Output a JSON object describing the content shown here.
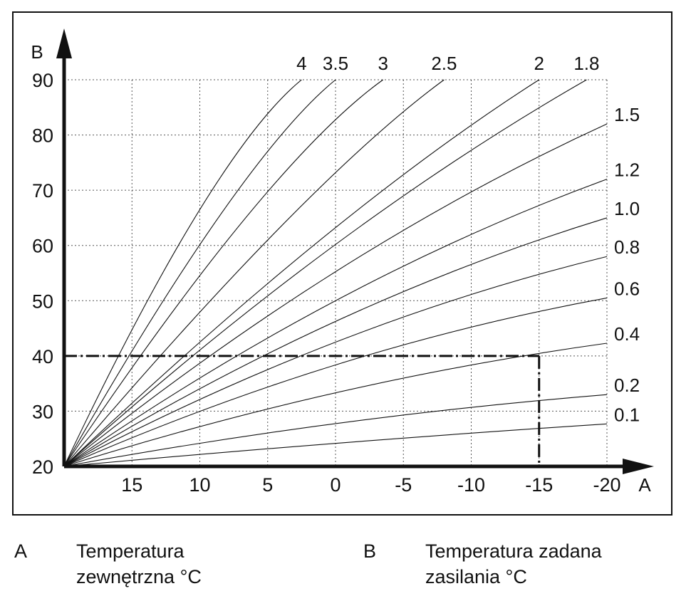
{
  "chart_data": {
    "type": "line",
    "title": "",
    "xlabel": "A",
    "ylabel": "B",
    "xlim": [
      20,
      -20
    ],
    "ylim": [
      20,
      90
    ],
    "x_ticks": [
      15,
      10,
      5,
      0,
      -5,
      -10,
      -15,
      -20
    ],
    "x_tick_labels": [
      "15",
      "10",
      "5",
      "0",
      "-5",
      "-10",
      "-15",
      "-20"
    ],
    "y_ticks": [
      20,
      30,
      40,
      50,
      60,
      70,
      80,
      90
    ],
    "y_tick_labels": [
      "20",
      "30",
      "40",
      "50",
      "60",
      "70",
      "80",
      "90"
    ],
    "origin": [
      20,
      20
    ],
    "grid": true,
    "series": [
      {
        "name": "0.1",
        "label": "0.1",
        "label_pos": "right",
        "end": [
          -20,
          27.7
        ],
        "control": [
          0,
          24.5
        ]
      },
      {
        "name": "0.2",
        "label": "0.2",
        "label_pos": "right",
        "end": [
          -20,
          33.0
        ],
        "control": [
          0,
          29.0
        ]
      },
      {
        "name": "0.4",
        "label": "0.4",
        "label_pos": "right",
        "end": [
          -20,
          42.3
        ],
        "control": [
          0,
          35.5
        ]
      },
      {
        "name": "0.6",
        "label": "0.6",
        "label_pos": "right",
        "end": [
          -20,
          50.5
        ],
        "control": [
          0,
          41.5
        ]
      },
      {
        "name": "0.8",
        "label": "0.8",
        "label_pos": "right",
        "end": [
          -20,
          58.0
        ],
        "control": [
          0,
          46.0
        ]
      },
      {
        "name": "1.0",
        "label": "1.0",
        "label_pos": "right",
        "end": [
          -20,
          65.0
        ],
        "control": [
          0,
          50.0
        ]
      },
      {
        "name": "1.2",
        "label": "1.2",
        "label_pos": "right",
        "end": [
          -20,
          72.0
        ],
        "control": [
          0,
          54.0
        ]
      },
      {
        "name": "1.5",
        "label": "1.5",
        "label_pos": "right",
        "end": [
          -20,
          82.0
        ],
        "control": [
          0,
          59.5
        ]
      },
      {
        "name": "1.8",
        "label": "1.8",
        "label_pos": "top",
        "end": [
          -18.5,
          90.0
        ],
        "control": [
          0,
          64.0
        ]
      },
      {
        "name": "2",
        "label": "2",
        "label_pos": "top",
        "end": [
          -15.0,
          90.0
        ],
        "control": [
          0,
          66.5
        ]
      },
      {
        "name": "2.5",
        "label": "2.5",
        "label_pos": "top",
        "end": [
          -8.0,
          90.0
        ],
        "control": [
          2,
          72.0
        ]
      },
      {
        "name": "3",
        "label": "3",
        "label_pos": "top",
        "end": [
          -3.5,
          90.0
        ],
        "control": [
          5,
          75.0
        ]
      },
      {
        "name": "3.5",
        "label": "3.5",
        "label_pos": "top",
        "end": [
          0.0,
          90.0
        ],
        "control": [
          7,
          76.0
        ]
      },
      {
        "name": "4",
        "label": "4",
        "label_pos": "top",
        "end": [
          2.5,
          90.0
        ],
        "control": [
          9,
          77.0
        ]
      }
    ],
    "annotation": {
      "type": "dash-dot guide",
      "outdoor_temp": -15,
      "flow_temp": 40
    }
  },
  "legend": {
    "a_key": "A",
    "a_line1": "Temperatura",
    "a_line2": "zewnętrzna °C",
    "b_key": "B",
    "b_line1": "Temperatura zadana",
    "b_line2": "zasilania °C"
  }
}
